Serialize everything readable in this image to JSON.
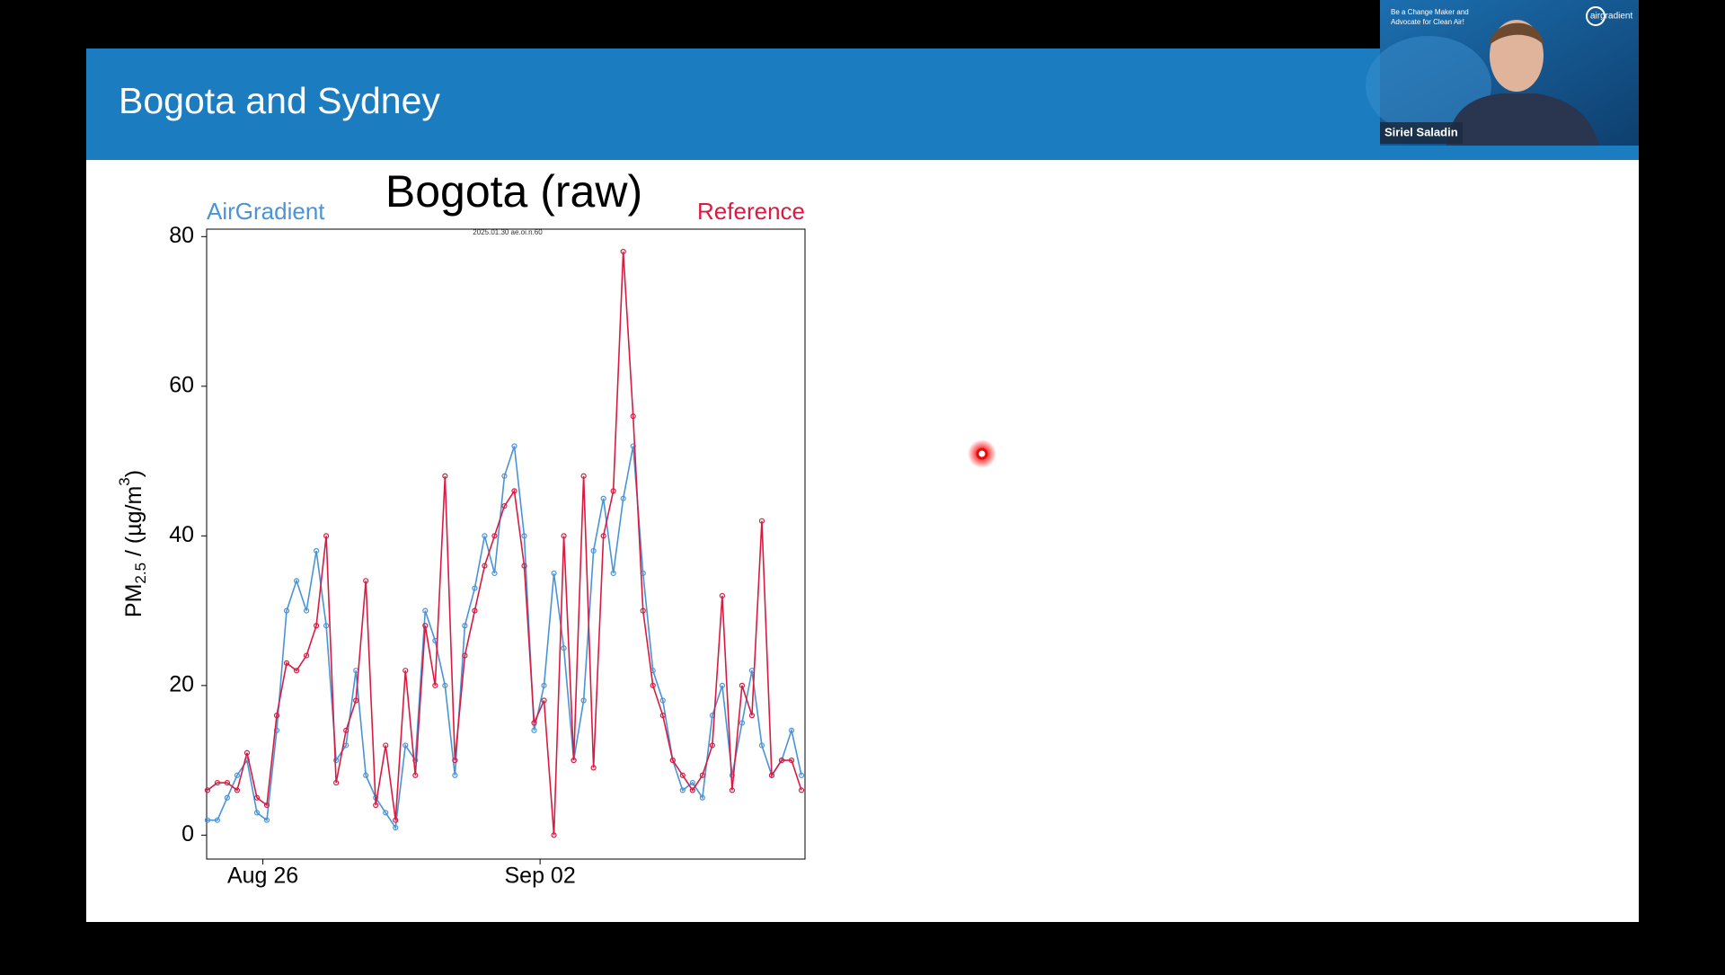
{
  "slide": {
    "title": "Bogota and Sydney"
  },
  "video": {
    "caption": [
      "Be a Change Maker and",
      "Advocate for Clean Air!"
    ],
    "logo": "airgradient",
    "speaker": "Siriel Saladin"
  },
  "chart_data": {
    "type": "line",
    "title": "Bogota (raw)",
    "ylabel": [
      "PM",
      "2.5",
      " / (µg/m",
      "3",
      ")"
    ],
    "watermark": "2025.01.30 ae.oi.n.60",
    "x": [
      24.6,
      24.85,
      25.1,
      25.35,
      25.6,
      25.85,
      26.1,
      26.35,
      26.6,
      26.85,
      27.1,
      27.35,
      27.6,
      27.85,
      28.1,
      28.35,
      28.6,
      28.85,
      29.1,
      29.35,
      29.6,
      29.85,
      30.1,
      30.35,
      30.6,
      30.85,
      31.1,
      31.35,
      31.6,
      31.85,
      32.1,
      32.35,
      32.6,
      32.85,
      33.1,
      33.35,
      33.6,
      33.85,
      34.1,
      34.35,
      34.6,
      34.85,
      35.1,
      35.35,
      35.6,
      35.85,
      36.1,
      36.35,
      36.6,
      36.85,
      37.1,
      37.35,
      37.6,
      37.85,
      38.1,
      38.35,
      38.6,
      38.85,
      39.1,
      39.35,
      39.6
    ],
    "series": [
      {
        "name": "AirGradient",
        "color": "#4a94d6",
        "values": [
          2,
          2,
          5,
          8,
          10,
          3,
          2,
          14,
          30,
          34,
          30,
          38,
          28,
          10,
          12,
          22,
          8,
          5,
          3,
          1,
          12,
          10,
          30,
          26,
          20,
          8,
          28,
          33,
          40,
          35,
          48,
          52,
          40,
          14,
          20,
          35,
          25,
          10,
          18,
          38,
          45,
          35,
          45,
          52,
          35,
          22,
          18,
          10,
          6,
          7,
          5,
          16,
          20,
          8,
          15,
          22,
          12,
          8,
          10,
          14,
          8
        ]
      },
      {
        "name": "Reference",
        "color": "#d81b43",
        "values": [
          6,
          7,
          7,
          6,
          11,
          5,
          4,
          16,
          23,
          22,
          24,
          28,
          40,
          7,
          14,
          18,
          34,
          4,
          12,
          2,
          22,
          8,
          28,
          20,
          48,
          10,
          24,
          30,
          36,
          40,
          44,
          46,
          36,
          15,
          18,
          0,
          40,
          10,
          48,
          9,
          40,
          46,
          78,
          56,
          30,
          20,
          16,
          10,
          8,
          6,
          8,
          12,
          32,
          6,
          20,
          16,
          42,
          8,
          10,
          10,
          6
        ]
      }
    ],
    "xlim": [
      24.58,
      39.69
    ],
    "xticks": [
      {
        "value": 26,
        "label": "Aug 26"
      },
      {
        "value": 33,
        "label": "Sep 02"
      }
    ],
    "ylim": [
      -3.2,
      81
    ],
    "yticks": [
      0,
      20,
      40,
      60,
      80
    ]
  }
}
